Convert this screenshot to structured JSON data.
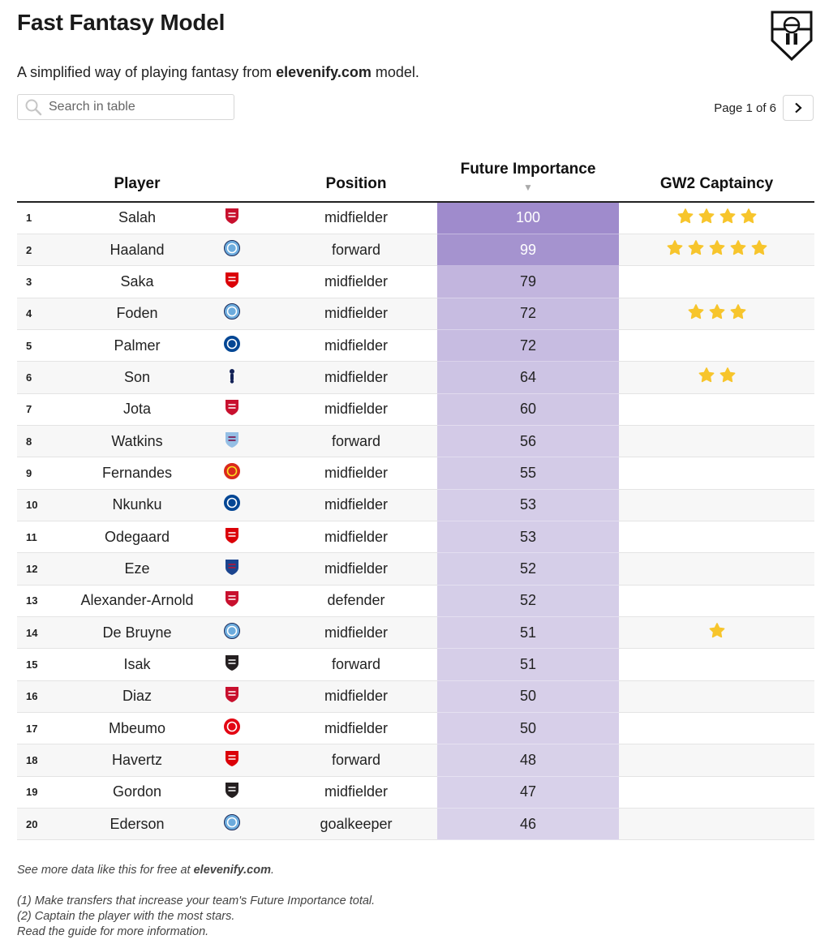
{
  "header": {
    "title": "Fast Fantasy Model",
    "subtitle_pre": "A simplified way of playing fantasy from ",
    "subtitle_site": "elevenify.com",
    "subtitle_post": " model."
  },
  "search": {
    "placeholder": "Search in table"
  },
  "pagination": {
    "text": "Page 1 of 6"
  },
  "table": {
    "columns": {
      "player": "Player",
      "position": "Position",
      "future_importance": "Future Importance",
      "captaincy": "GW2 Captaincy"
    },
    "sort_indicator": "▼",
    "rows": [
      {
        "rank": "1",
        "player": "Salah",
        "club": "Liverpool",
        "position": "midfielder",
        "fi": 100,
        "stars": 4
      },
      {
        "rank": "2",
        "player": "Haaland",
        "club": "Manchester City",
        "position": "forward",
        "fi": 99,
        "stars": 5
      },
      {
        "rank": "3",
        "player": "Saka",
        "club": "Arsenal",
        "position": "midfielder",
        "fi": 79,
        "stars": 0
      },
      {
        "rank": "4",
        "player": "Foden",
        "club": "Manchester City",
        "position": "midfielder",
        "fi": 72,
        "stars": 3
      },
      {
        "rank": "5",
        "player": "Palmer",
        "club": "Chelsea",
        "position": "midfielder",
        "fi": 72,
        "stars": 0
      },
      {
        "rank": "6",
        "player": "Son",
        "club": "Tottenham",
        "position": "midfielder",
        "fi": 64,
        "stars": 2
      },
      {
        "rank": "7",
        "player": "Jota",
        "club": "Liverpool",
        "position": "midfielder",
        "fi": 60,
        "stars": 0
      },
      {
        "rank": "8",
        "player": "Watkins",
        "club": "Aston Villa",
        "position": "forward",
        "fi": 56,
        "stars": 0
      },
      {
        "rank": "9",
        "player": "Fernandes",
        "club": "Manchester United",
        "position": "midfielder",
        "fi": 55,
        "stars": 0
      },
      {
        "rank": "10",
        "player": "Nkunku",
        "club": "Chelsea",
        "position": "midfielder",
        "fi": 53,
        "stars": 0
      },
      {
        "rank": "11",
        "player": "Odegaard",
        "club": "Arsenal",
        "position": "midfielder",
        "fi": 53,
        "stars": 0
      },
      {
        "rank": "12",
        "player": "Eze",
        "club": "Crystal Palace",
        "position": "midfielder",
        "fi": 52,
        "stars": 0
      },
      {
        "rank": "13",
        "player": "Alexander-Arnold",
        "club": "Liverpool",
        "position": "defender",
        "fi": 52,
        "stars": 0
      },
      {
        "rank": "14",
        "player": "De Bruyne",
        "club": "Manchester City",
        "position": "midfielder",
        "fi": 51,
        "stars": 1
      },
      {
        "rank": "15",
        "player": "Isak",
        "club": "Newcastle",
        "position": "forward",
        "fi": 51,
        "stars": 0
      },
      {
        "rank": "16",
        "player": "Diaz",
        "club": "Liverpool",
        "position": "midfielder",
        "fi": 50,
        "stars": 0
      },
      {
        "rank": "17",
        "player": "Mbeumo",
        "club": "Brentford",
        "position": "midfielder",
        "fi": 50,
        "stars": 0
      },
      {
        "rank": "18",
        "player": "Havertz",
        "club": "Arsenal",
        "position": "forward",
        "fi": 48,
        "stars": 0
      },
      {
        "rank": "19",
        "player": "Gordon",
        "club": "Newcastle",
        "position": "midfielder",
        "fi": 47,
        "stars": 0
      },
      {
        "rank": "20",
        "player": "Ederson",
        "club": "Manchester City",
        "position": "goalkeeper",
        "fi": 46,
        "stars": 0
      }
    ]
  },
  "colors": {
    "fi_high": "#9f8bcc",
    "fi_low": "#d9d2ea",
    "star": "#f7c52c",
    "liverpool": "#c8102e",
    "manchester_city": "#6cabdd",
    "arsenal": "#db0007",
    "chelsea": "#034694",
    "tottenham": "#132257",
    "aston_villa": "#95bfe5",
    "manchester_united": "#da291c",
    "crystal_palace": "#1b458f",
    "newcastle": "#241f20",
    "brentford": "#e30613"
  },
  "footer": {
    "more_pre": "See more data like this for free at ",
    "more_site": "elevenify.com",
    "more_post": ".",
    "note1": "(1) Make transfers that increase your team's Future Importance total.",
    "note2": "(2) Captain the player with the most stars.",
    "note3": "Read the guide for more information."
  },
  "icons": {
    "logo": "elevenify-shield-logo",
    "search": "search-icon",
    "next": "chevron-right-icon",
    "star": "star-icon"
  }
}
